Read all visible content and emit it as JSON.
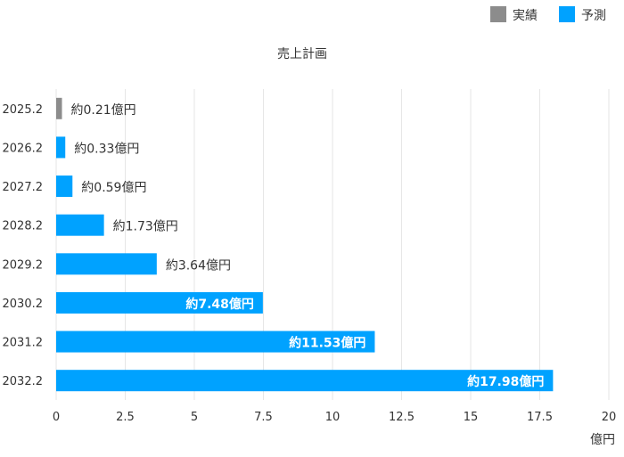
{
  "chart_data": {
    "type": "bar",
    "orientation": "horizontal",
    "title": "売上計画",
    "xlabel": "億円",
    "ylabel": "",
    "xlim": [
      0,
      20
    ],
    "x_ticks": [
      0,
      2.5,
      5,
      7.5,
      10,
      12.5,
      15,
      17.5,
      20
    ],
    "x_tick_labels": [
      "0",
      "2.5",
      "5",
      "7.5",
      "10",
      "12.5",
      "15",
      "17.5",
      "20"
    ],
    "grid": "vertical",
    "legend_position": "top-right",
    "categories": [
      "2025.2",
      "2026.2",
      "2027.2",
      "2028.2",
      "2029.2",
      "2030.2",
      "2031.2",
      "2032.2"
    ],
    "values": [
      0.21,
      0.33,
      0.59,
      1.73,
      3.64,
      7.48,
      11.53,
      17.98
    ],
    "series_index": [
      0,
      1,
      1,
      1,
      1,
      1,
      1,
      1
    ],
    "data_labels": [
      "約0.21億円",
      "約0.33億円",
      "約0.59億円",
      "約1.73億円",
      "約3.64億円",
      "約7.48億円",
      "約11.53億円",
      "約17.98億円"
    ],
    "series": [
      {
        "name": "実績",
        "color": "#8c8c8c"
      },
      {
        "name": "予測",
        "color": "#00a2ff"
      }
    ]
  }
}
